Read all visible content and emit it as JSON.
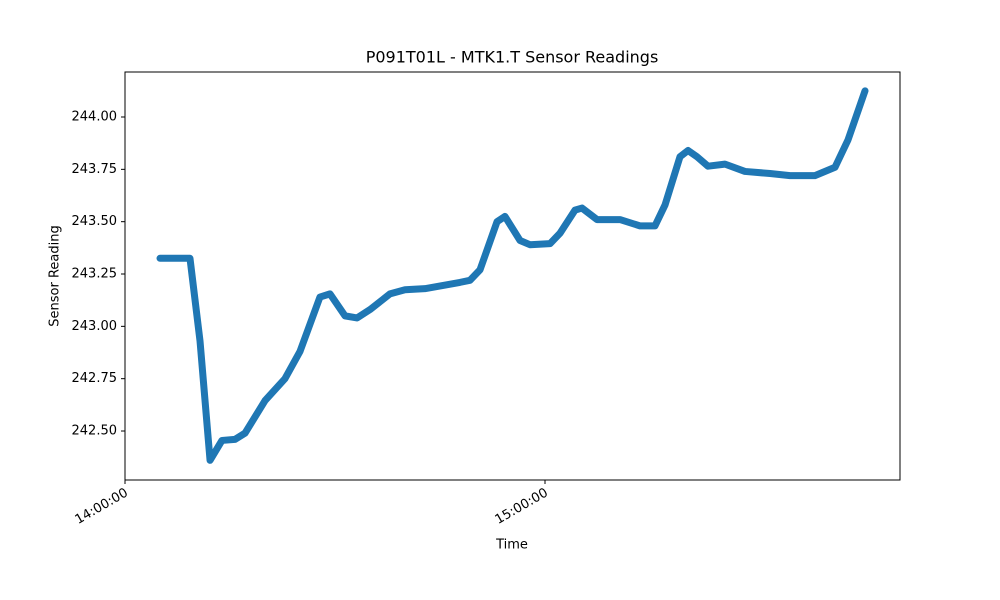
{
  "chart_data": {
    "type": "line",
    "title": "P091T01L - MTK1.T Sensor Readings",
    "x_label": "Time",
    "y_label": "Sensor Reading",
    "x": [
      "14:05:00",
      "14:09:17",
      "14:10:43",
      "14:12:09",
      "14:13:51",
      "14:15:43",
      "14:17:09",
      "14:20:00",
      "14:22:51",
      "14:25:00",
      "14:27:51",
      "14:29:17",
      "14:31:26",
      "14:33:09",
      "14:35:00",
      "14:37:51",
      "14:40:00",
      "14:42:51",
      "14:47:51",
      "14:49:17",
      "14:50:43",
      "14:53:09",
      "14:54:17",
      "14:56:26",
      "14:57:51",
      "15:00:43",
      "15:02:09",
      "15:04:17",
      "15:05:17",
      "15:07:26",
      "15:10:43",
      "15:13:34",
      "15:15:43",
      "15:17:09",
      "15:19:17",
      "15:20:26",
      "15:21:43",
      "15:23:17",
      "15:25:43",
      "15:28:34",
      "15:32:09",
      "15:35:00",
      "15:38:34",
      "15:41:26",
      "15:43:17",
      "15:45:43"
    ],
    "series": [
      {
        "color": "#1f77b4",
        "values": [
          243.325,
          243.325,
          242.93,
          242.36,
          242.455,
          242.46,
          242.49,
          242.645,
          242.75,
          242.88,
          243.14,
          243.155,
          243.05,
          243.04,
          243.08,
          243.155,
          243.175,
          243.18,
          243.21,
          243.22,
          243.27,
          243.5,
          243.525,
          243.41,
          243.39,
          243.395,
          243.445,
          243.555,
          243.565,
          243.51,
          243.51,
          243.48,
          243.48,
          243.58,
          243.81,
          243.84,
          243.81,
          243.765,
          243.775,
          243.74,
          243.73,
          243.72,
          243.72,
          243.76,
          243.89,
          244.125
        ]
      }
    ],
    "xlim": [
      "14:00:00",
      "15:50:43"
    ],
    "xticks": [
      "14:00:00",
      "15:00:00"
    ],
    "ylim": [
      242.266,
      244.215
    ],
    "yticks": [
      {
        "value": 242.5,
        "label": "242.50"
      },
      {
        "value": 242.75,
        "label": "242.75"
      },
      {
        "value": 243.0,
        "label": "243.00"
      },
      {
        "value": 243.25,
        "label": "243.25"
      },
      {
        "value": 243.5,
        "label": "243.50"
      },
      {
        "value": 243.75,
        "label": "243.75"
      },
      {
        "value": 244.0,
        "label": "244.00"
      }
    ],
    "grid": false
  }
}
